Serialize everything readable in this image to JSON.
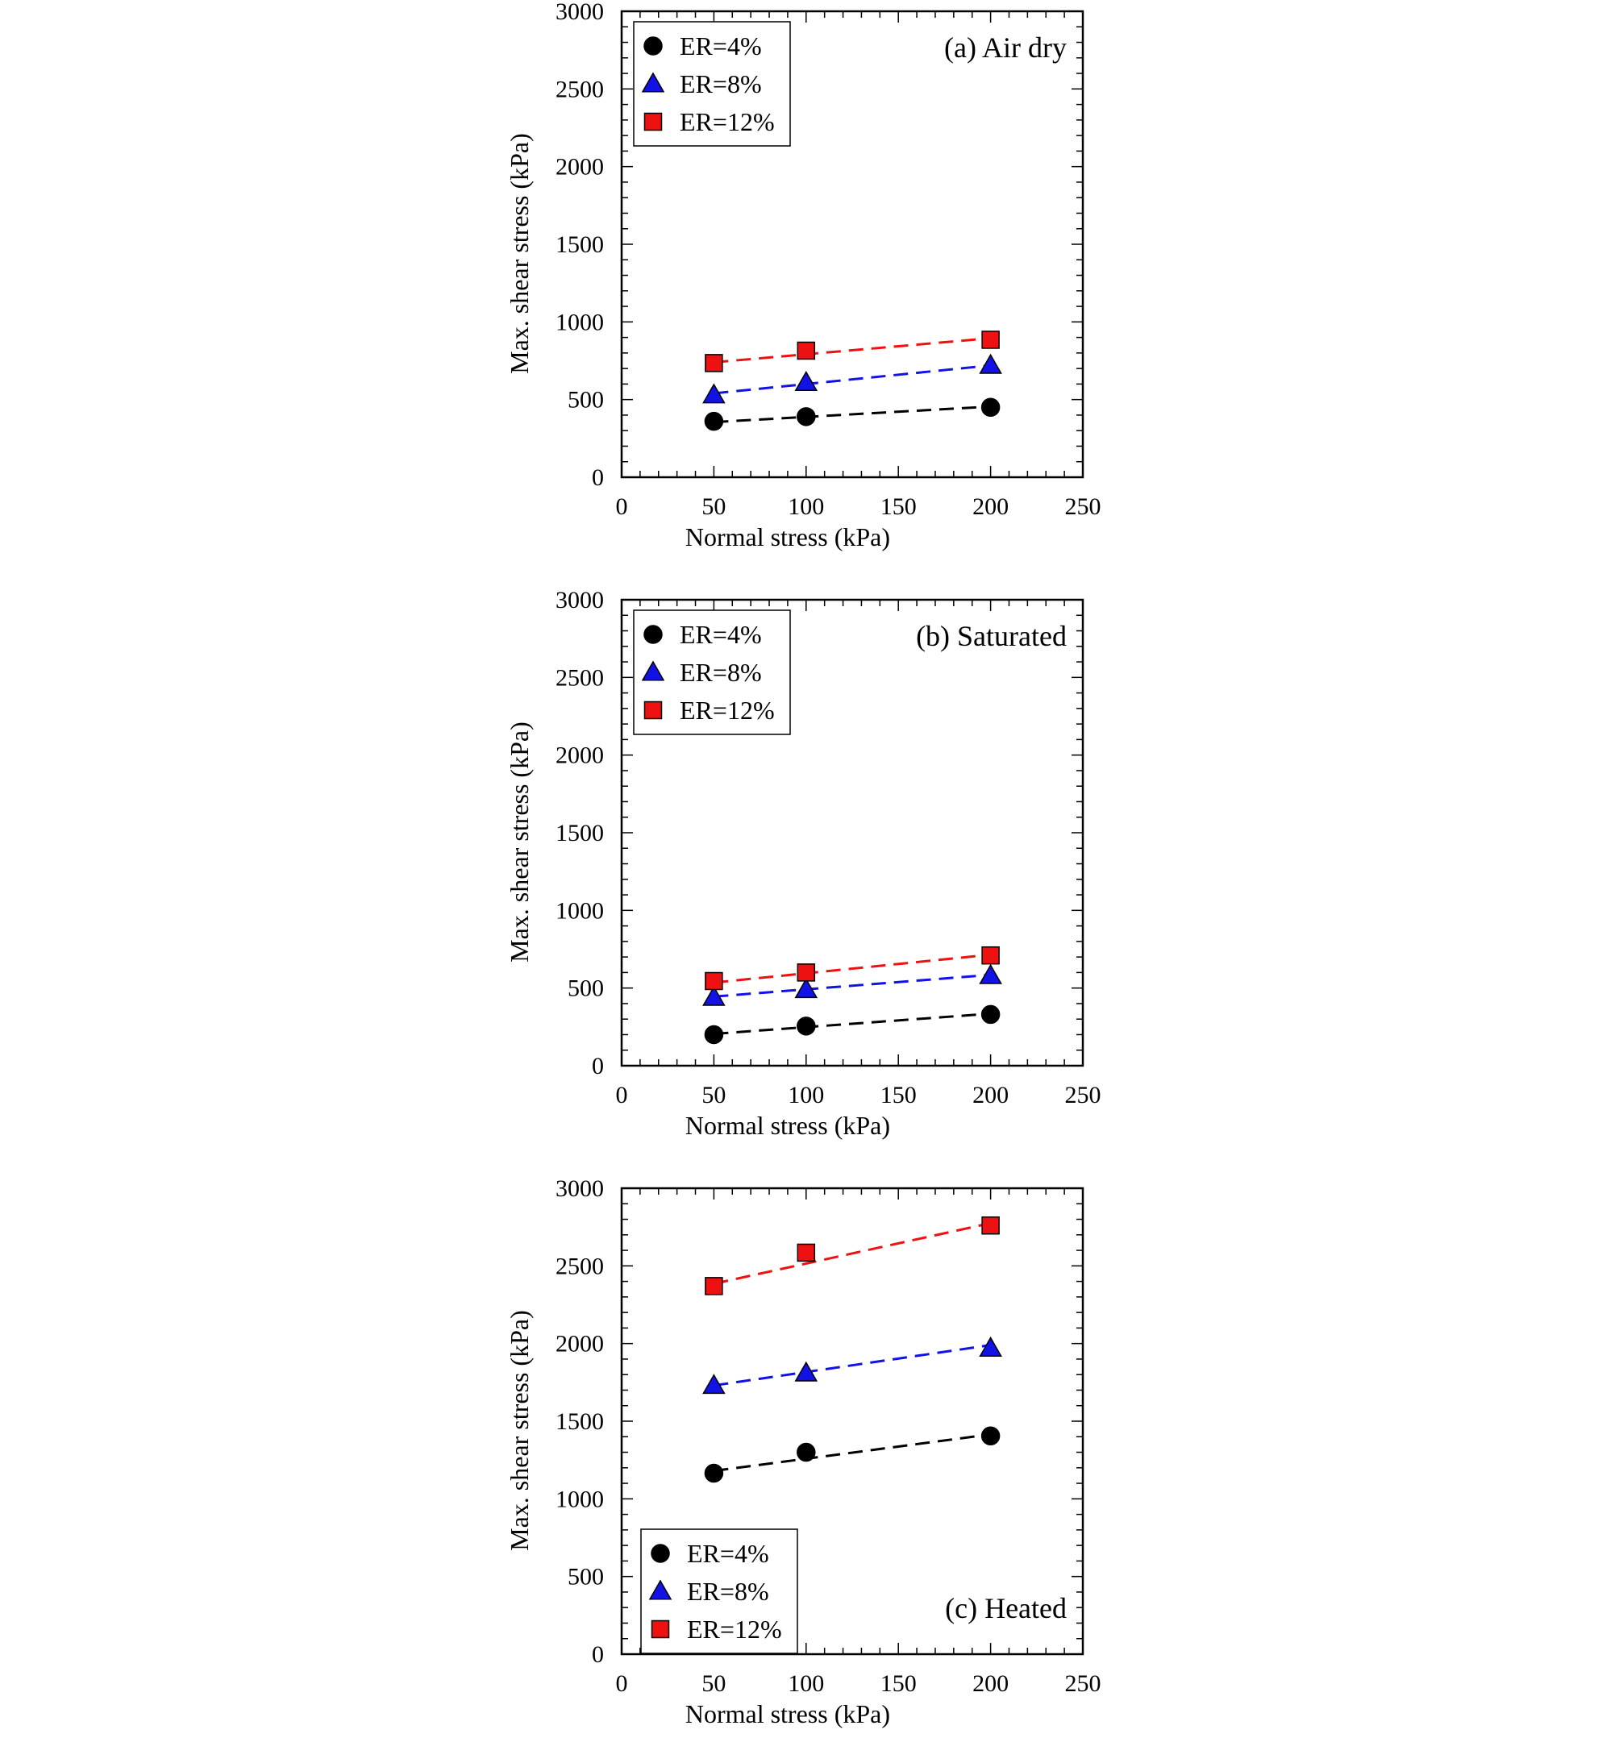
{
  "colors": {
    "er4": "#000000",
    "er8": "#1212e6",
    "er12": "#ee1111"
  },
  "chart_data": [
    {
      "type": "scatter",
      "title": "(a) Air dry",
      "xlabel": "Normal stress (kPa)",
      "ylabel": "Max. shear stress (kPa)",
      "xlim": [
        0,
        250
      ],
      "ylim": [
        0,
        3000
      ],
      "xticks": [
        0,
        50,
        100,
        150,
        200,
        250
      ],
      "yticks": [
        0,
        500,
        1000,
        1500,
        2000,
        2500,
        3000
      ],
      "legend_position": "top-left",
      "series": [
        {
          "name": "ER=4%",
          "marker": "circle",
          "color_key": "er4",
          "x": [
            50,
            100,
            200
          ],
          "y": [
            360,
            390,
            450
          ],
          "fit": [
            [
              50,
              355
            ],
            [
              200,
              455
            ]
          ]
        },
        {
          "name": "ER=8%",
          "marker": "triangle",
          "color_key": "er8",
          "x": [
            50,
            100,
            200
          ],
          "y": [
            530,
            610,
            720
          ],
          "fit": [
            [
              50,
              540
            ],
            [
              200,
              720
            ]
          ]
        },
        {
          "name": "ER=12%",
          "marker": "square",
          "color_key": "er12",
          "x": [
            50,
            100,
            200
          ],
          "y": [
            735,
            815,
            885
          ],
          "fit": [
            [
              50,
              740
            ],
            [
              200,
              895
            ]
          ]
        }
      ]
    },
    {
      "type": "scatter",
      "title": "(b) Saturated",
      "xlabel": "Normal stress (kPa)",
      "ylabel": "Max. shear stress (kPa)",
      "xlim": [
        0,
        250
      ],
      "ylim": [
        0,
        3000
      ],
      "xticks": [
        0,
        50,
        100,
        150,
        200,
        250
      ],
      "yticks": [
        0,
        500,
        1000,
        1500,
        2000,
        2500,
        3000
      ],
      "legend_position": "top-left",
      "series": [
        {
          "name": "ER=4%",
          "marker": "circle",
          "color_key": "er4",
          "x": [
            50,
            100,
            200
          ],
          "y": [
            200,
            255,
            330
          ],
          "fit": [
            [
              50,
              205
            ],
            [
              200,
              335
            ]
          ]
        },
        {
          "name": "ER=8%",
          "marker": "triangle",
          "color_key": "er8",
          "x": [
            50,
            100,
            200
          ],
          "y": [
            440,
            490,
            580
          ],
          "fit": [
            [
              50,
              445
            ],
            [
              200,
              585
            ]
          ]
        },
        {
          "name": "ER=12%",
          "marker": "square",
          "color_key": "er12",
          "x": [
            50,
            100,
            200
          ],
          "y": [
            545,
            600,
            710
          ],
          "fit": [
            [
              50,
              535
            ],
            [
              200,
              715
            ]
          ]
        }
      ]
    },
    {
      "type": "scatter",
      "title": "(c) Heated",
      "xlabel": "Normal stress (kPa)",
      "ylabel": "Max. shear stress (kPa)",
      "xlim": [
        0,
        250
      ],
      "ylim": [
        0,
        3000
      ],
      "xticks": [
        0,
        50,
        100,
        150,
        200,
        250
      ],
      "yticks": [
        0,
        500,
        1000,
        1500,
        2000,
        2500,
        3000
      ],
      "legend_position": "bottom-left",
      "series": [
        {
          "name": "ER=4%",
          "marker": "circle",
          "color_key": "er4",
          "x": [
            50,
            100,
            200
          ],
          "y": [
            1165,
            1300,
            1405
          ],
          "fit": [
            [
              50,
              1180
            ],
            [
              200,
              1415
            ]
          ]
        },
        {
          "name": "ER=8%",
          "marker": "triangle",
          "color_key": "er8",
          "x": [
            50,
            100,
            200
          ],
          "y": [
            1730,
            1810,
            1970
          ],
          "fit": [
            [
              50,
              1730
            ],
            [
              200,
              1990
            ]
          ]
        },
        {
          "name": "ER=12%",
          "marker": "square",
          "color_key": "er12",
          "x": [
            50,
            100,
            200
          ],
          "y": [
            2370,
            2585,
            2760
          ],
          "fit": [
            [
              50,
              2385
            ],
            [
              200,
              2775
            ]
          ]
        }
      ]
    }
  ]
}
